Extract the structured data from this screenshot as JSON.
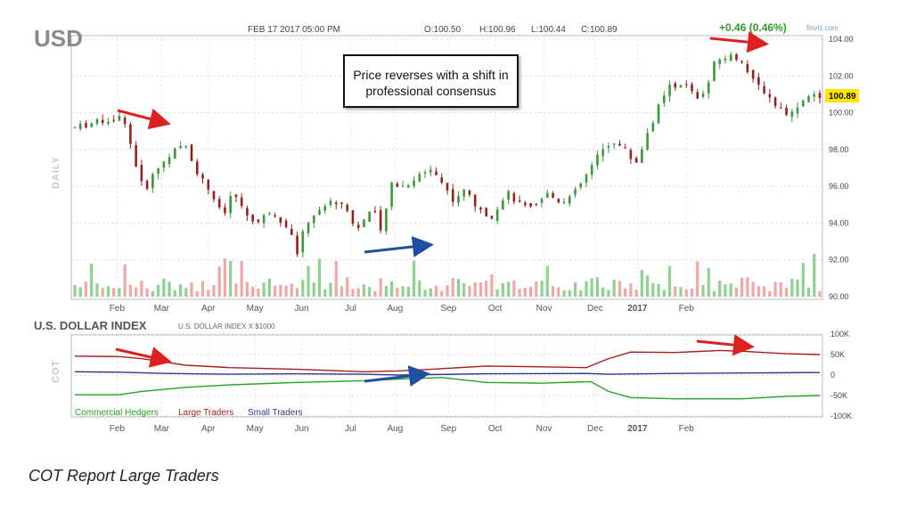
{
  "chart_data": [
    {
      "type": "candlestick",
      "symbol": "USD",
      "panel_label": "DAILY",
      "date": "FEB 17 2017 05:00 PM",
      "ohlc": {
        "open": "O:100.50",
        "high": "H:100.96",
        "low": "L:100.44",
        "close": "C:100.89"
      },
      "change": "+0.46 (0.46%)",
      "watermark": "finviz.com",
      "last_price": "100.89",
      "x_ticks": [
        "Feb",
        "Mar",
        "Apr",
        "May",
        "Jun",
        "Jul",
        "Aug",
        "Sep",
        "Oct",
        "Nov",
        "Dec",
        "2017",
        "Feb"
      ],
      "y_ticks": [
        "104.00",
        "102.00",
        "100.00",
        "98.00",
        "96.00",
        "94.00",
        "92.00",
        "90.00"
      ],
      "ylim": [
        90,
        104
      ],
      "annotation": "Price reverses with a shift in professional consensus",
      "price_path": [
        {
          "t": 0,
          "v": 99.2
        },
        {
          "t": 10,
          "v": 99.5
        },
        {
          "t": 22,
          "v": 99.8
        },
        {
          "t": 26,
          "v": 97.8
        },
        {
          "t": 31,
          "v": 95.7
        },
        {
          "t": 36,
          "v": 96.8
        },
        {
          "t": 44,
          "v": 97.9
        },
        {
          "t": 50,
          "v": 98.2
        },
        {
          "t": 55,
          "v": 96.8
        },
        {
          "t": 62,
          "v": 95.5
        },
        {
          "t": 67,
          "v": 94.2
        },
        {
          "t": 71,
          "v": 95.8
        },
        {
          "t": 76,
          "v": 94.6
        },
        {
          "t": 82,
          "v": 94.0
        },
        {
          "t": 88,
          "v": 94.7
        },
        {
          "t": 96,
          "v": 93.8
        },
        {
          "t": 100,
          "v": 92.4
        },
        {
          "t": 104,
          "v": 94.0
        },
        {
          "t": 110,
          "v": 94.8
        },
        {
          "t": 116,
          "v": 95.2
        },
        {
          "t": 122,
          "v": 95.0
        },
        {
          "t": 126,
          "v": 93.6
        },
        {
          "t": 130,
          "v": 94.2
        },
        {
          "t": 134,
          "v": 94.8
        },
        {
          "t": 138,
          "v": 93.3
        },
        {
          "t": 142,
          "v": 96.2
        },
        {
          "t": 148,
          "v": 96.0
        },
        {
          "t": 154,
          "v": 96.5
        },
        {
          "t": 160,
          "v": 97.0
        },
        {
          "t": 164,
          "v": 96.4
        },
        {
          "t": 170,
          "v": 95.3
        },
        {
          "t": 176,
          "v": 95.8
        },
        {
          "t": 182,
          "v": 94.6
        },
        {
          "t": 188,
          "v": 94.4
        },
        {
          "t": 194,
          "v": 95.7
        },
        {
          "t": 200,
          "v": 95.0
        },
        {
          "t": 206,
          "v": 94.7
        },
        {
          "t": 212,
          "v": 95.6
        },
        {
          "t": 218,
          "v": 95.2
        },
        {
          "t": 224,
          "v": 95.5
        },
        {
          "t": 230,
          "v": 96.6
        },
        {
          "t": 236,
          "v": 97.8
        },
        {
          "t": 242,
          "v": 98.5
        },
        {
          "t": 248,
          "v": 97.9
        },
        {
          "t": 252,
          "v": 97.2
        },
        {
          "t": 256,
          "v": 98.4
        },
        {
          "t": 262,
          "v": 100.2
        },
        {
          "t": 268,
          "v": 101.5
        },
        {
          "t": 274,
          "v": 101.6
        },
        {
          "t": 280,
          "v": 100.7
        },
        {
          "t": 284,
          "v": 101.3
        },
        {
          "t": 288,
          "v": 102.8
        },
        {
          "t": 294,
          "v": 103.1
        },
        {
          "t": 300,
          "v": 102.9
        },
        {
          "t": 304,
          "v": 101.8
        },
        {
          "t": 310,
          "v": 101.2
        },
        {
          "t": 316,
          "v": 100.3
        },
        {
          "t": 322,
          "v": 99.9
        },
        {
          "t": 326,
          "v": 100.6
        },
        {
          "t": 332,
          "v": 100.9
        },
        {
          "t": 335,
          "v": 100.89
        }
      ]
    },
    {
      "type": "line",
      "title": "U.S. DOLLAR INDEX",
      "subtitle": "U.S. DOLLAR INDEX X $1000",
      "panel_label": "COT",
      "x_ticks": [
        "Feb",
        "Mar",
        "Apr",
        "May",
        "Jun",
        "Jul",
        "Aug",
        "Sep",
        "Oct",
        "Nov",
        "Dec",
        "2017",
        "Feb"
      ],
      "y_ticks": [
        "100K",
        "50K",
        "0",
        "-50K",
        "-100K"
      ],
      "ylim": [
        -100,
        100
      ],
      "legend": [
        "Commercial Hedgers",
        "Large Traders",
        "Small Traders"
      ],
      "series": [
        {
          "name": "Commercial Hedgers",
          "color": "#22a322",
          "points": [
            {
              "t": 0,
              "v": -48
            },
            {
              "t": 20,
              "v": -48
            },
            {
              "t": 30,
              "v": -40
            },
            {
              "t": 50,
              "v": -30
            },
            {
              "t": 70,
              "v": -24
            },
            {
              "t": 100,
              "v": -18
            },
            {
              "t": 130,
              "v": -14
            },
            {
              "t": 145,
              "v": -10
            },
            {
              "t": 165,
              "v": -6
            },
            {
              "t": 185,
              "v": -18
            },
            {
              "t": 210,
              "v": -20
            },
            {
              "t": 220,
              "v": -18
            },
            {
              "t": 232,
              "v": -16
            },
            {
              "t": 240,
              "v": -40
            },
            {
              "t": 250,
              "v": -55
            },
            {
              "t": 270,
              "v": -58
            },
            {
              "t": 300,
              "v": -58
            },
            {
              "t": 320,
              "v": -52
            },
            {
              "t": 335,
              "v": -50
            }
          ]
        },
        {
          "name": "Large Traders",
          "color": "#a31f1f",
          "points": [
            {
              "t": 0,
              "v": 46
            },
            {
              "t": 20,
              "v": 45
            },
            {
              "t": 30,
              "v": 40
            },
            {
              "t": 50,
              "v": 24
            },
            {
              "t": 70,
              "v": 18
            },
            {
              "t": 100,
              "v": 14
            },
            {
              "t": 130,
              "v": 8
            },
            {
              "t": 145,
              "v": 10
            },
            {
              "t": 160,
              "v": 14
            },
            {
              "t": 185,
              "v": 22
            },
            {
              "t": 210,
              "v": 20
            },
            {
              "t": 230,
              "v": 18
            },
            {
              "t": 240,
              "v": 40
            },
            {
              "t": 250,
              "v": 56
            },
            {
              "t": 270,
              "v": 55
            },
            {
              "t": 290,
              "v": 60
            },
            {
              "t": 300,
              "v": 58
            },
            {
              "t": 320,
              "v": 52
            },
            {
              "t": 335,
              "v": 50
            }
          ]
        },
        {
          "name": "Small Traders",
          "color": "#2d3a8c",
          "points": [
            {
              "t": 0,
              "v": 8
            },
            {
              "t": 20,
              "v": 7
            },
            {
              "t": 40,
              "v": 4
            },
            {
              "t": 70,
              "v": 2
            },
            {
              "t": 100,
              "v": 3
            },
            {
              "t": 130,
              "v": 2
            },
            {
              "t": 145,
              "v": 0
            },
            {
              "t": 185,
              "v": 3
            },
            {
              "t": 230,
              "v": 4
            },
            {
              "t": 240,
              "v": 2
            },
            {
              "t": 270,
              "v": 4
            },
            {
              "t": 300,
              "v": 5
            },
            {
              "t": 335,
              "v": 6
            }
          ]
        }
      ]
    }
  ],
  "caption": "COT Report Large Traders",
  "colors": {
    "up": "#3a9a3a",
    "down": "#9c1f1f",
    "vol_up": "#8fd18f",
    "vol_down": "#f2a7a7",
    "arrow_red": "#e02020",
    "arrow_blue": "#1f4fa0",
    "price_tag": "#ffe600"
  }
}
